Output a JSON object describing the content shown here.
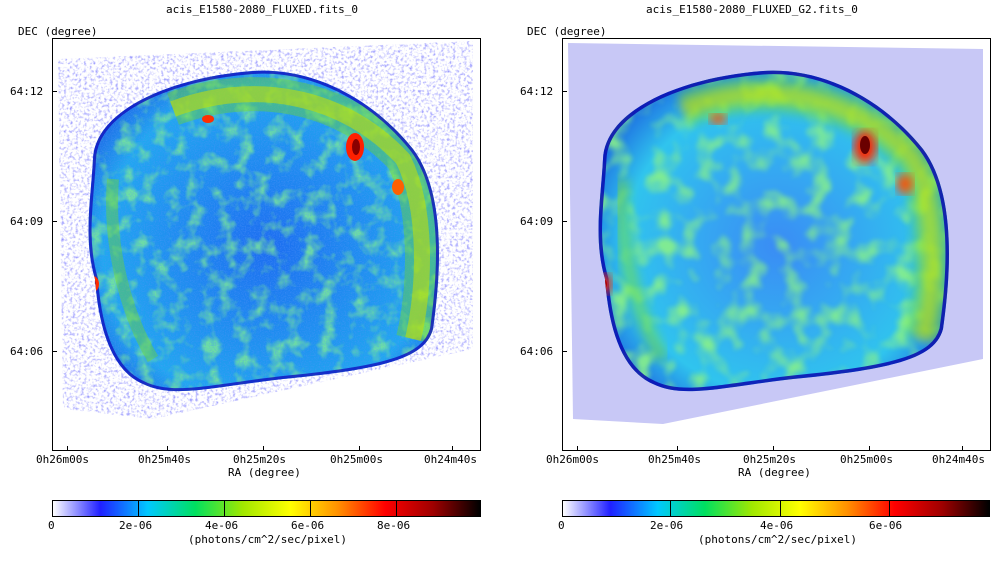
{
  "panels": [
    {
      "title": "acis_E1580-2080_FLUXED.fits_0",
      "y_axis_label": "DEC (degree)",
      "x_axis_label": "RA (degree)",
      "y_ticks": [
        "64:12",
        "64:09",
        "64:06"
      ],
      "x_ticks": [
        "0h26m00s",
        "0h25m40s",
        "0h25m20s",
        "0h25m00s",
        "0h24m40s"
      ],
      "colorbar_ticks": [
        "0",
        "2e-06",
        "4e-06",
        "6e-06",
        "8e-06"
      ],
      "colorbar_label": "(photons/cm^2/sec/pixel)",
      "style": "noisy"
    },
    {
      "title": "acis_E1580-2080_FLUXED_G2.fits_0",
      "y_axis_label": "DEC (degree)",
      "x_axis_label": "RA (degree)",
      "y_ticks": [
        "64:12",
        "64:09",
        "64:06"
      ],
      "x_ticks": [
        "0h26m00s",
        "0h25m40s",
        "0h25m20s",
        "0h25m00s",
        "0h24m40s"
      ],
      "colorbar_ticks": [
        "0",
        "2e-06",
        "4e-06",
        "6e-06"
      ],
      "colorbar_label": "(photons/cm^2/sec/pixel)",
      "style": "smoothed"
    }
  ],
  "colormap": [
    "#ffffff",
    "#2020ff",
    "#00c8ff",
    "#00e060",
    "#a0e800",
    "#ffff00",
    "#ff9000",
    "#ff0000",
    "#a00000",
    "#000000"
  ]
}
